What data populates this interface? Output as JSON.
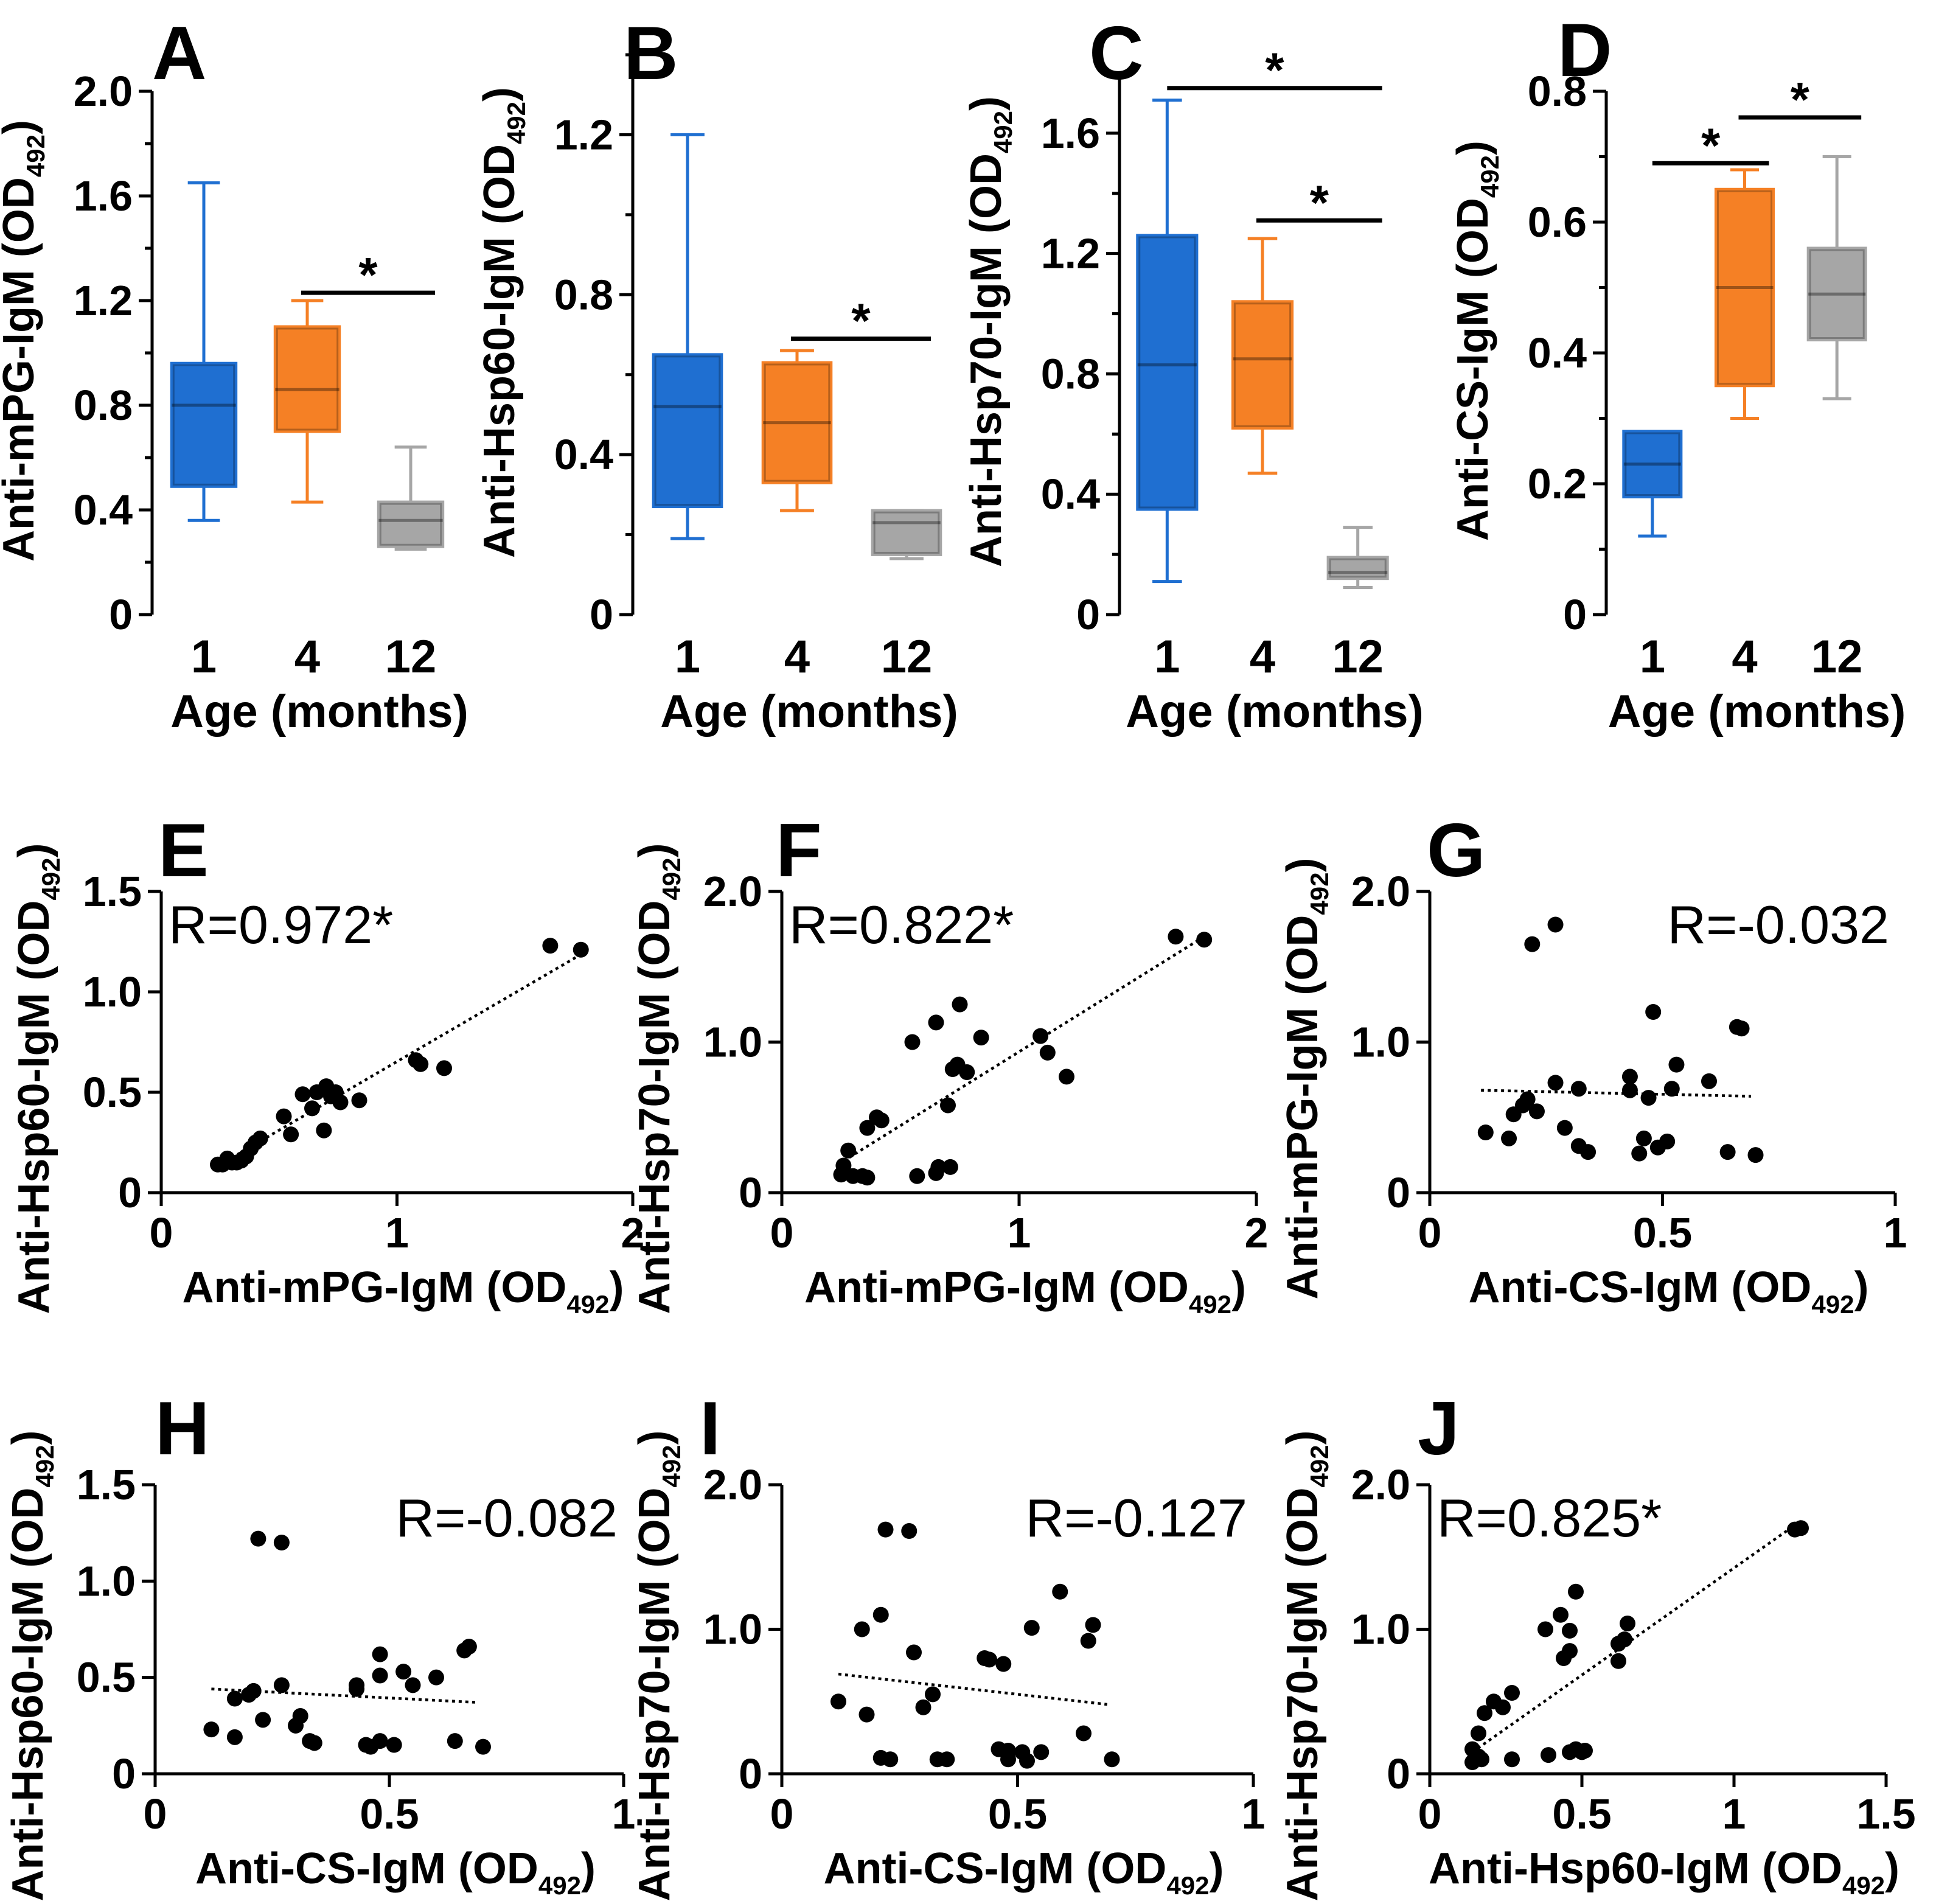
{
  "chart_data": [
    {
      "id": "A",
      "type": "box",
      "letter": "A",
      "xlabel": "Age (months)",
      "ylabel_main": "Anti-mPG-IgM (OD",
      "ylabel_sub": "492",
      "ylabel_end": ")",
      "ylim": [
        0,
        2.0
      ],
      "yticks": [
        0,
        0.4,
        0.8,
        1.2,
        1.6,
        2.0
      ],
      "ytick_labels": [
        "0",
        "0.4",
        "0.8",
        "1.2",
        "1.6",
        "2.0"
      ],
      "categories": [
        "1",
        "4",
        "12"
      ],
      "boxes": [
        {
          "min": 0.36,
          "q1": 0.49,
          "median": 0.8,
          "q3": 0.96,
          "max": 1.65,
          "color": "#1f6fd1"
        },
        {
          "min": 0.43,
          "q1": 0.7,
          "median": 0.86,
          "q3": 1.1,
          "max": 1.2,
          "color": "#f58025"
        },
        {
          "min": 0.25,
          "q1": 0.26,
          "median": 0.36,
          "q3": 0.43,
          "max": 0.64,
          "color": "#a6a6a6"
        }
      ],
      "significance": [
        {
          "from": 1,
          "to": 2,
          "level": 1.23,
          "label": "*"
        }
      ]
    },
    {
      "id": "B",
      "type": "box",
      "letter": "B",
      "xlabel": "Age (months)",
      "ylabel_main": "Anti-Hsp60-IgM (OD",
      "ylabel_sub": "492",
      "ylabel_end": ")",
      "ylim": [
        0,
        1.4
      ],
      "yticks": [
        0,
        0.4,
        0.8,
        1.2
      ],
      "ytick_labels": [
        "0",
        "0.4",
        "0.8",
        "1.2"
      ],
      "categories": [
        "1",
        "4",
        "12"
      ],
      "boxes": [
        {
          "min": 0.19,
          "q1": 0.27,
          "median": 0.52,
          "q3": 0.65,
          "max": 1.2,
          "color": "#1f6fd1"
        },
        {
          "min": 0.26,
          "q1": 0.33,
          "median": 0.48,
          "q3": 0.63,
          "max": 0.66,
          "color": "#f58025"
        },
        {
          "min": 0.14,
          "q1": 0.15,
          "median": 0.23,
          "q3": 0.26,
          "max": 0.26,
          "color": "#a6a6a6"
        }
      ],
      "significance": [
        {
          "from": 1,
          "to": 2,
          "level": 0.69,
          "label": "*"
        }
      ]
    },
    {
      "id": "C",
      "type": "box",
      "letter": "C",
      "xlabel": "Age (months)",
      "ylabel_main": "Anti-Hsp70-IgM (OD",
      "ylabel_sub": "492",
      "ylabel_end": ")",
      "ylim": [
        0,
        1.8
      ],
      "yticks": [
        0,
        0.4,
        0.8,
        1.2,
        1.6
      ],
      "ytick_labels": [
        "0",
        "0.4",
        "0.8",
        "1.2",
        "1.6"
      ],
      "categories": [
        "1",
        "4",
        "12"
      ],
      "boxes": [
        {
          "min": 0.11,
          "q1": 0.35,
          "median": 0.83,
          "q3": 1.26,
          "max": 1.71,
          "color": "#1f6fd1"
        },
        {
          "min": 0.47,
          "q1": 0.62,
          "median": 0.85,
          "q3": 1.04,
          "max": 1.25,
          "color": "#f58025"
        },
        {
          "min": 0.09,
          "q1": 0.12,
          "median": 0.14,
          "q3": 0.19,
          "max": 0.29,
          "color": "#a6a6a6"
        }
      ],
      "significance": [
        {
          "from": 0,
          "to": 2,
          "level": 1.75,
          "label": "*"
        },
        {
          "from": 1,
          "to": 2,
          "level": 1.31,
          "label": "*"
        }
      ]
    },
    {
      "id": "D",
      "type": "box",
      "letter": "D",
      "xlabel": "Age (months)",
      "ylabel_main": "Anti-CS-IgM (OD",
      "ylabel_sub": "492",
      "ylabel_end": ")",
      "ylim": [
        0,
        0.8
      ],
      "yticks": [
        0,
        0.2,
        0.4,
        0.6,
        0.8
      ],
      "ytick_labels": [
        "0",
        "0.2",
        "0.4",
        "0.6",
        "0.8"
      ],
      "categories": [
        "1",
        "4",
        "12"
      ],
      "boxes": [
        {
          "min": 0.12,
          "q1": 0.18,
          "median": 0.23,
          "q3": 0.28,
          "max": 0.28,
          "color": "#1f6fd1"
        },
        {
          "min": 0.3,
          "q1": 0.35,
          "median": 0.5,
          "q3": 0.65,
          "max": 0.68,
          "color": "#f58025"
        },
        {
          "min": 0.33,
          "q1": 0.42,
          "median": 0.49,
          "q3": 0.56,
          "max": 0.7,
          "color": "#a6a6a6"
        }
      ],
      "significance": [
        {
          "from": 0,
          "to": 1,
          "level": 0.69,
          "label": "*"
        },
        {
          "from": 1,
          "to": 2,
          "level": 0.76,
          "label": "*"
        }
      ]
    },
    {
      "id": "E",
      "type": "scatter",
      "letter": "E",
      "r_text": "R=0.972*",
      "r_anchor": "left",
      "xlabel_main": "Anti-mPG-IgM (OD",
      "xlabel_sub": "492",
      "xlabel_end": ")",
      "ylabel_main": "Anti-Hsp60-IgM (OD",
      "ylabel_sub": "492",
      "ylabel_end": ")",
      "xlim": [
        0,
        2
      ],
      "ylim": [
        0,
        1.5
      ],
      "xticks": [
        0,
        1,
        2
      ],
      "xtick_labels": [
        "0",
        "1",
        "2"
      ],
      "yticks": [
        0,
        0.5,
        1.0,
        1.5
      ],
      "ytick_labels": [
        "0",
        "0.5",
        "1.0",
        "1.5"
      ],
      "trend": [
        [
          0.25,
          0.14
        ],
        [
          1.8,
          1.2
        ]
      ],
      "points": [
        [
          1.65,
          1.23
        ],
        [
          1.78,
          1.21
        ],
        [
          1.08,
          0.66
        ],
        [
          1.1,
          0.64
        ],
        [
          1.2,
          0.62
        ],
        [
          0.84,
          0.46
        ],
        [
          0.76,
          0.45
        ],
        [
          0.7,
          0.53
        ],
        [
          0.74,
          0.5
        ],
        [
          0.72,
          0.48
        ],
        [
          0.66,
          0.5
        ],
        [
          0.64,
          0.42
        ],
        [
          0.69,
          0.31
        ],
        [
          0.6,
          0.49
        ],
        [
          0.52,
          0.38
        ],
        [
          0.55,
          0.29
        ],
        [
          0.42,
          0.27
        ],
        [
          0.4,
          0.25
        ],
        [
          0.38,
          0.22
        ],
        [
          0.36,
          0.18
        ],
        [
          0.34,
          0.16
        ],
        [
          0.32,
          0.15
        ],
        [
          0.3,
          0.15
        ],
        [
          0.28,
          0.17
        ],
        [
          0.26,
          0.14
        ],
        [
          0.24,
          0.14
        ]
      ]
    },
    {
      "id": "F",
      "type": "scatter",
      "letter": "F",
      "r_text": "R=0.822*",
      "r_anchor": "left",
      "xlabel_main": "Anti-mPG-IgM (OD",
      "xlabel_sub": "492",
      "xlabel_end": ")",
      "ylabel_main": "Anti-Hsp70-IgM (OD",
      "ylabel_sub": "492",
      "ylabel_end": ")",
      "xlim": [
        0,
        2
      ],
      "ylim": [
        0,
        2.0
      ],
      "xticks": [
        0,
        1,
        2
      ],
      "xtick_labels": [
        "0",
        "1",
        "2"
      ],
      "yticks": [
        0,
        1.0,
        2.0
      ],
      "ytick_labels": [
        "0",
        "1.0",
        "2.0"
      ],
      "trend": [
        [
          0.26,
          0.21
        ],
        [
          1.8,
          1.72
        ]
      ],
      "points": [
        [
          1.66,
          1.7
        ],
        [
          1.78,
          1.68
        ],
        [
          1.09,
          1.04
        ],
        [
          1.12,
          0.93
        ],
        [
          1.2,
          0.77
        ],
        [
          0.75,
          1.25
        ],
        [
          0.65,
          1.13
        ],
        [
          0.55,
          1.0
        ],
        [
          0.84,
          1.03
        ],
        [
          0.74,
          0.85
        ],
        [
          0.72,
          0.82
        ],
        [
          0.78,
          0.8
        ],
        [
          0.7,
          0.58
        ],
        [
          0.4,
          0.5
        ],
        [
          0.42,
          0.48
        ],
        [
          0.36,
          0.43
        ],
        [
          0.28,
          0.28
        ],
        [
          0.26,
          0.18
        ],
        [
          0.25,
          0.12
        ],
        [
          0.3,
          0.11
        ],
        [
          0.34,
          0.11
        ],
        [
          0.36,
          0.1
        ],
        [
          0.57,
          0.11
        ],
        [
          0.66,
          0.17
        ],
        [
          0.71,
          0.17
        ],
        [
          0.65,
          0.13
        ]
      ]
    },
    {
      "id": "G",
      "type": "scatter",
      "letter": "G",
      "r_text": "R=-0.032",
      "r_anchor": "right",
      "xlabel_main": "Anti-CS-IgM (OD",
      "xlabel_sub": "492",
      "xlabel_end": ")",
      "ylabel_main": "Anti-mPG-IgM (OD",
      "ylabel_sub": "492",
      "ylabel_end": ")",
      "xlim": [
        0,
        1
      ],
      "ylim": [
        0,
        2.0
      ],
      "xticks": [
        0,
        0.5,
        1
      ],
      "xtick_labels": [
        "0",
        "0.5",
        "1"
      ],
      "yticks": [
        0,
        1.0,
        2.0
      ],
      "ytick_labels": [
        "0",
        "1.0",
        "2.0"
      ],
      "trend": [
        [
          0.11,
          0.68
        ],
        [
          0.69,
          0.64
        ]
      ],
      "points": [
        [
          0.22,
          1.65
        ],
        [
          0.27,
          1.78
        ],
        [
          0.48,
          1.2
        ],
        [
          0.66,
          1.1
        ],
        [
          0.67,
          1.09
        ],
        [
          0.53,
          0.85
        ],
        [
          0.43,
          0.77
        ],
        [
          0.6,
          0.74
        ],
        [
          0.27,
          0.73
        ],
        [
          0.32,
          0.69
        ],
        [
          0.52,
          0.69
        ],
        [
          0.43,
          0.68
        ],
        [
          0.47,
          0.63
        ],
        [
          0.21,
          0.62
        ],
        [
          0.2,
          0.58
        ],
        [
          0.23,
          0.54
        ],
        [
          0.18,
          0.52
        ],
        [
          0.12,
          0.4
        ],
        [
          0.29,
          0.43
        ],
        [
          0.17,
          0.36
        ],
        [
          0.46,
          0.36
        ],
        [
          0.51,
          0.34
        ],
        [
          0.32,
          0.31
        ],
        [
          0.34,
          0.27
        ],
        [
          0.45,
          0.26
        ],
        [
          0.49,
          0.3
        ],
        [
          0.64,
          0.27
        ],
        [
          0.7,
          0.25
        ]
      ]
    },
    {
      "id": "H",
      "type": "scatter",
      "letter": "H",
      "r_text": "R=-0.082",
      "r_anchor": "right",
      "xlabel_main": "Anti-CS-IgM (OD",
      "xlabel_sub": "492",
      "xlabel_end": ")",
      "ylabel_main": "Anti-Hsp60-IgM (OD",
      "ylabel_sub": "492",
      "ylabel_end": ")",
      "xlim": [
        0,
        1
      ],
      "ylim": [
        0,
        1.5
      ],
      "xticks": [
        0,
        0.5,
        1
      ],
      "xtick_labels": [
        "0",
        "0.5",
        "1"
      ],
      "yticks": [
        0,
        0.5,
        1.0,
        1.5
      ],
      "ytick_labels": [
        "0",
        "0.5",
        "1.0",
        "1.5"
      ],
      "trend": [
        [
          0.12,
          0.44
        ],
        [
          0.69,
          0.37
        ]
      ],
      "points": [
        [
          0.22,
          1.22
        ],
        [
          0.27,
          1.2
        ],
        [
          0.67,
          0.66
        ],
        [
          0.66,
          0.64
        ],
        [
          0.48,
          0.62
        ],
        [
          0.53,
          0.53
        ],
        [
          0.6,
          0.5
        ],
        [
          0.48,
          0.51
        ],
        [
          0.55,
          0.46
        ],
        [
          0.43,
          0.46
        ],
        [
          0.43,
          0.44
        ],
        [
          0.27,
          0.46
        ],
        [
          0.21,
          0.43
        ],
        [
          0.2,
          0.41
        ],
        [
          0.17,
          0.39
        ],
        [
          0.31,
          0.3
        ],
        [
          0.23,
          0.28
        ],
        [
          0.3,
          0.25
        ],
        [
          0.12,
          0.23
        ],
        [
          0.17,
          0.19
        ],
        [
          0.33,
          0.17
        ],
        [
          0.34,
          0.16
        ],
        [
          0.45,
          0.15
        ],
        [
          0.46,
          0.14
        ],
        [
          0.48,
          0.17
        ],
        [
          0.51,
          0.15
        ],
        [
          0.64,
          0.17
        ],
        [
          0.7,
          0.14
        ]
      ]
    },
    {
      "id": "I",
      "type": "scatter",
      "letter": "I",
      "r_text": "R=-0.127",
      "r_anchor": "right",
      "xlabel_main": "Anti-CS-IgM (OD",
      "xlabel_sub": "492",
      "xlabel_end": ")",
      "ylabel_main": "Anti-Hsp70-IgM (OD",
      "ylabel_sub": "492",
      "ylabel_end": ")",
      "xlim": [
        0,
        1
      ],
      "ylim": [
        0,
        2.0
      ],
      "xticks": [
        0,
        0.5,
        1
      ],
      "xtick_labels": [
        "0",
        "0.5",
        "1"
      ],
      "yticks": [
        0,
        1.0,
        2.0
      ],
      "ytick_labels": [
        "0",
        "1.0",
        "2.0"
      ],
      "trend": [
        [
          0.12,
          0.69
        ],
        [
          0.69,
          0.48
        ]
      ],
      "points": [
        [
          0.22,
          1.69
        ],
        [
          0.27,
          1.68
        ],
        [
          0.59,
          1.26
        ],
        [
          0.21,
          1.1
        ],
        [
          0.66,
          1.03
        ],
        [
          0.17,
          1.0
        ],
        [
          0.53,
          1.01
        ],
        [
          0.65,
          0.92
        ],
        [
          0.28,
          0.84
        ],
        [
          0.43,
          0.8
        ],
        [
          0.44,
          0.79
        ],
        [
          0.47,
          0.76
        ],
        [
          0.32,
          0.55
        ],
        [
          0.12,
          0.5
        ],
        [
          0.3,
          0.46
        ],
        [
          0.18,
          0.41
        ],
        [
          0.64,
          0.28
        ],
        [
          0.46,
          0.17
        ],
        [
          0.48,
          0.16
        ],
        [
          0.51,
          0.15
        ],
        [
          0.55,
          0.15
        ],
        [
          0.21,
          0.11
        ],
        [
          0.23,
          0.1
        ],
        [
          0.33,
          0.1
        ],
        [
          0.35,
          0.1
        ],
        [
          0.48,
          0.1
        ],
        [
          0.52,
          0.09
        ],
        [
          0.7,
          0.1
        ]
      ]
    },
    {
      "id": "J",
      "type": "scatter",
      "letter": "J",
      "r_text": "R=0.825*",
      "r_anchor": "left",
      "xlabel_main": "Anti-Hsp60-IgM (OD",
      "xlabel_sub": "492",
      "xlabel_end": ")",
      "ylabel_main": "Anti-Hsp70-IgM (OD",
      "ylabel_sub": "492",
      "ylabel_end": ")",
      "xlim": [
        0,
        1.5
      ],
      "ylim": [
        0,
        2.0
      ],
      "xticks": [
        0,
        0.5,
        1.0,
        1.5
      ],
      "xtick_labels": [
        "0",
        "0.5",
        "1",
        "1.5"
      ],
      "yticks": [
        0,
        1.0,
        2.0
      ],
      "ytick_labels": [
        "0",
        "1.0",
        "2.0"
      ],
      "trend": [
        [
          0.14,
          0.15
        ],
        [
          1.22,
          1.75
        ]
      ],
      "points": [
        [
          1.2,
          1.69
        ],
        [
          1.22,
          1.7
        ],
        [
          0.48,
          1.26
        ],
        [
          0.43,
          1.1
        ],
        [
          0.38,
          1.0
        ],
        [
          0.46,
          0.99
        ],
        [
          0.65,
          1.04
        ],
        [
          0.64,
          0.93
        ],
        [
          0.62,
          0.9
        ],
        [
          0.46,
          0.85
        ],
        [
          0.44,
          0.8
        ],
        [
          0.62,
          0.78
        ],
        [
          0.27,
          0.56
        ],
        [
          0.24,
          0.46
        ],
        [
          0.21,
          0.5
        ],
        [
          0.18,
          0.42
        ],
        [
          0.16,
          0.28
        ],
        [
          0.14,
          0.17
        ],
        [
          0.15,
          0.12
        ],
        [
          0.17,
          0.1
        ],
        [
          0.14,
          0.08
        ],
        [
          0.16,
          0.12
        ],
        [
          0.27,
          0.1
        ],
        [
          0.39,
          0.13
        ],
        [
          0.48,
          0.17
        ],
        [
          0.5,
          0.15
        ],
        [
          0.46,
          0.15
        ],
        [
          0.51,
          0.16
        ]
      ]
    }
  ]
}
